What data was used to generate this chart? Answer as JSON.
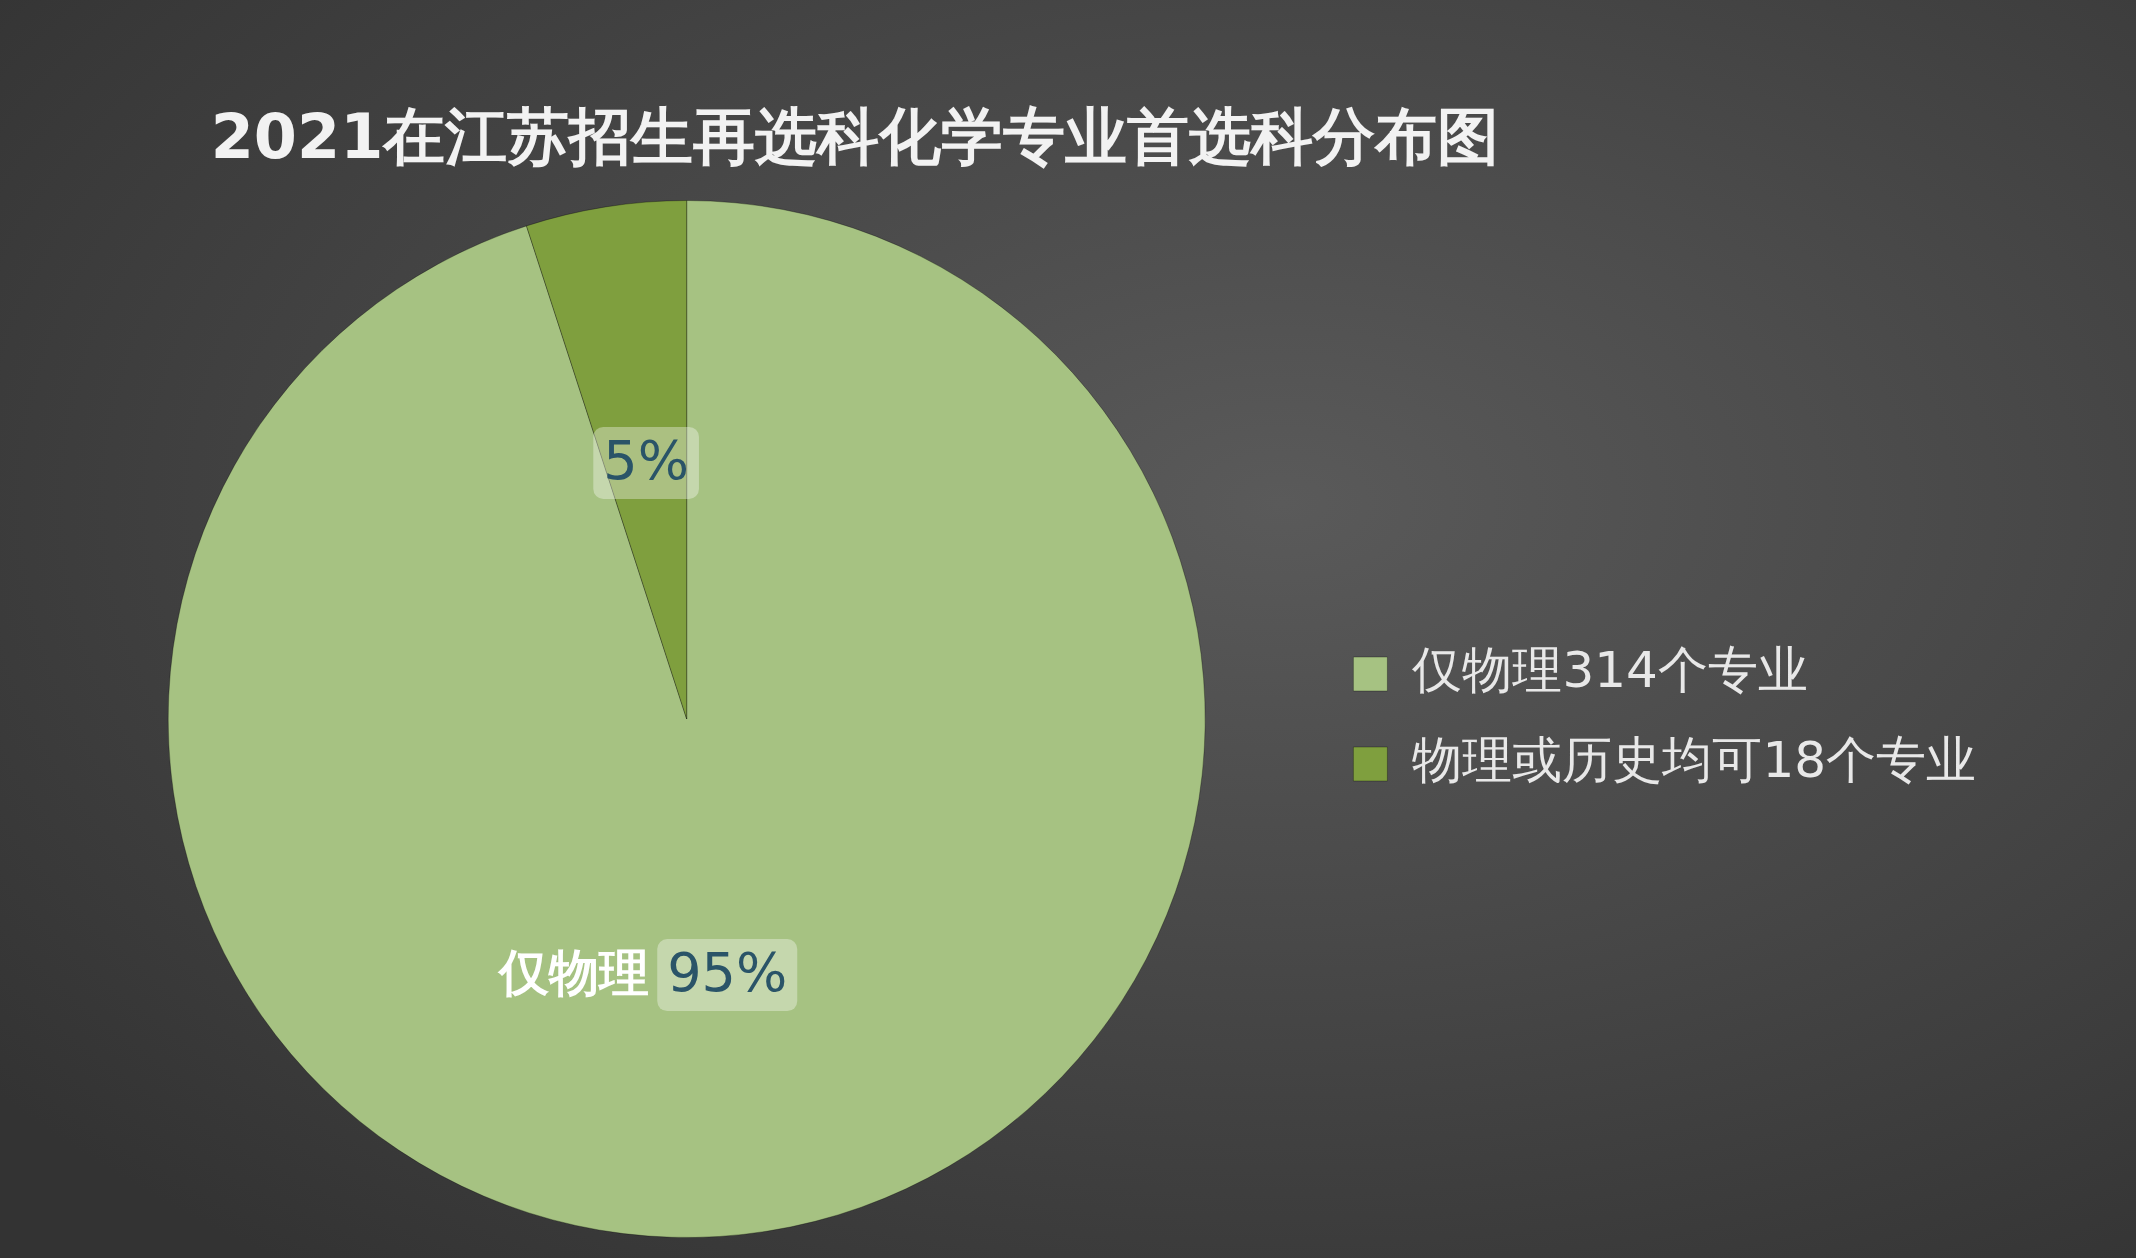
{
  "chart_data": {
    "type": "pie",
    "title": "2021在江苏招生再选科化学专业首选科分布图",
    "categories": [
      "仅物理314个专业",
      "物理或历史均可18个专业"
    ],
    "values": [
      95,
      5
    ],
    "colors": [
      "#a6c282",
      "#7f9f3e"
    ],
    "value_labels": [
      "95%",
      "5%"
    ],
    "annotations": [
      "仅物理"
    ],
    "legend": "right"
  }
}
